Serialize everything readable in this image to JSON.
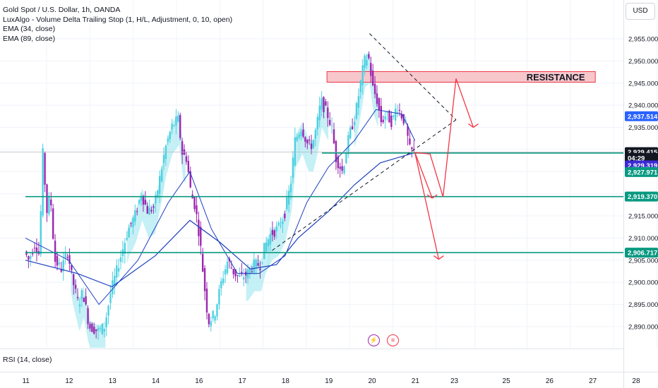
{
  "legend": {
    "symbol": "Gold Spot / U.S. Dollar, 1h, OANDA",
    "indicator": "LuxAlgo - Volume Delta Trailing Stop (1, H/L, Adjustment, 0, 10, open)",
    "ema34": "EMA (34, close)",
    "ema89": "EMA (89, close)"
  },
  "currency_button": "USD",
  "rsi_label": "RSI (14, close)",
  "colors": {
    "bull": "#4dd0e1",
    "bear": "#9c27b0",
    "ema": "#1e3fbf",
    "level": "#089981",
    "resistance_fill": "#f7c7cc",
    "resistance_border": "#f23645",
    "arrow": "#f23645",
    "trail_fill": "#b2ebf2",
    "grid": "#f0f3fa"
  },
  "chart_data": {
    "type": "candlestick",
    "symbol": "XAUUSD",
    "timeframe": "1h",
    "y_axis": {
      "range": [
        2887,
        2957
      ],
      "ticks": [
        2890,
        2895,
        2900,
        2905,
        2910,
        2915,
        2920,
        2925,
        2930,
        2935,
        2940,
        2945,
        2950,
        2955
      ],
      "tick_labels": [
        "2,890.000",
        "2,895.000",
        "2,900.000",
        "2,905.000",
        "2,910.000",
        "2,915.000",
        "",
        "",
        "",
        "2,935.000",
        "2,940.000",
        "2,945.000",
        "2,950.000",
        "2,955.000"
      ]
    },
    "x_axis": {
      "labels": [
        "11",
        "12",
        "13",
        "14",
        "16",
        "17",
        "18",
        "19",
        "20",
        "21",
        "23",
        "25",
        "26",
        "27",
        "28"
      ],
      "label_slots": [
        0.5,
        1.5,
        2.5,
        3.5,
        4.5,
        5.5,
        6.5,
        7.5,
        8.5,
        9.5,
        10.4,
        11.6,
        12.6,
        13.6,
        14.6
      ],
      "candle_day_range": [
        0,
        10.05
      ]
    },
    "price_path": [
      [
        0,
        2907
      ],
      [
        0.1,
        2905
      ],
      [
        0.25,
        2909
      ],
      [
        0.35,
        2906
      ],
      [
        0.42,
        2930
      ],
      [
        0.52,
        2916
      ],
      [
        0.6,
        2920
      ],
      [
        0.7,
        2905
      ],
      [
        0.85,
        2903
      ],
      [
        1.0,
        2907
      ],
      [
        1.1,
        2901
      ],
      [
        1.25,
        2895
      ],
      [
        1.35,
        2898
      ],
      [
        1.5,
        2890
      ],
      [
        1.7,
        2889
      ],
      [
        1.85,
        2890
      ],
      [
        2.0,
        2898
      ],
      [
        2.2,
        2905
      ],
      [
        2.4,
        2912
      ],
      [
        2.55,
        2915
      ],
      [
        2.7,
        2920
      ],
      [
        2.85,
        2916
      ],
      [
        3.0,
        2917
      ],
      [
        3.1,
        2922
      ],
      [
        3.25,
        2930
      ],
      [
        3.4,
        2935
      ],
      [
        3.55,
        2937
      ],
      [
        3.65,
        2929
      ],
      [
        3.75,
        2928
      ],
      [
        3.85,
        2920
      ],
      [
        3.95,
        2917
      ],
      [
        4.05,
        2910
      ],
      [
        4.15,
        2900
      ],
      [
        4.25,
        2891
      ],
      [
        4.4,
        2893
      ],
      [
        4.55,
        2900
      ],
      [
        4.7,
        2905
      ],
      [
        4.85,
        2902
      ],
      [
        5.0,
        2901
      ],
      [
        5.15,
        2902
      ],
      [
        5.3,
        2904
      ],
      [
        5.45,
        2904
      ],
      [
        5.55,
        2908
      ],
      [
        5.7,
        2911
      ],
      [
        5.85,
        2912
      ],
      [
        6.0,
        2915
      ],
      [
        6.15,
        2922
      ],
      [
        6.25,
        2932
      ],
      [
        6.4,
        2935
      ],
      [
        6.55,
        2931
      ],
      [
        6.65,
        2931
      ],
      [
        6.75,
        2935
      ],
      [
        6.85,
        2941
      ],
      [
        7.0,
        2938
      ],
      [
        7.1,
        2935
      ],
      [
        7.2,
        2928
      ],
      [
        7.35,
        2925
      ],
      [
        7.5,
        2933
      ],
      [
        7.65,
        2938
      ],
      [
        7.75,
        2944
      ],
      [
        7.85,
        2950
      ],
      [
        7.95,
        2951
      ],
      [
        8.05,
        2944
      ],
      [
        8.15,
        2941
      ],
      [
        8.25,
        2936
      ],
      [
        8.35,
        2938
      ],
      [
        8.5,
        2936
      ],
      [
        8.6,
        2940
      ],
      [
        8.7,
        2938
      ],
      [
        8.8,
        2936
      ],
      [
        8.9,
        2930
      ],
      [
        9.0,
        2929.4
      ]
    ],
    "ema_34": [
      [
        0,
        2910
      ],
      [
        1.0,
        2905
      ],
      [
        1.7,
        2895
      ],
      [
        2.6,
        2905
      ],
      [
        3.3,
        2918
      ],
      [
        3.8,
        2925
      ],
      [
        4.3,
        2912
      ],
      [
        4.9,
        2902
      ],
      [
        5.4,
        2902
      ],
      [
        6.0,
        2906
      ],
      [
        6.5,
        2918
      ],
      [
        7.0,
        2926
      ],
      [
        7.6,
        2932
      ],
      [
        8.1,
        2939
      ],
      [
        8.7,
        2938
      ],
      [
        9.0,
        2932
      ]
    ],
    "ema_89": [
      [
        0,
        2905
      ],
      [
        1.2,
        2902
      ],
      [
        2.0,
        2899
      ],
      [
        3.0,
        2906
      ],
      [
        3.8,
        2914
      ],
      [
        4.5,
        2909
      ],
      [
        5.2,
        2903
      ],
      [
        5.8,
        2904
      ],
      [
        6.3,
        2910
      ],
      [
        7.0,
        2916
      ],
      [
        7.6,
        2922
      ],
      [
        8.2,
        2927
      ],
      [
        9.0,
        2929.3
      ]
    ],
    "levels": [
      {
        "price": 2929.2,
        "from_slot": 6.85
      },
      {
        "price": 2919.37,
        "from_slot": 0
      },
      {
        "price": 2906.717,
        "from_slot": 0
      }
    ],
    "resistance_zone": {
      "label": "RESISTANCE",
      "price_low": 2945.2,
      "price_high": 2947.6,
      "from_slot": 7.0,
      "to_slot": 13.2
    },
    "triangle": {
      "apex": [
        7.95,
        2956.2
      ],
      "upper_end": [
        9.95,
        2936.7
      ],
      "lower_start": [
        5.7,
        2907.2
      ]
    },
    "forecast_paths": [
      [
        [
          9.0,
          2929.3
        ],
        [
          9.4,
          2919.0
        ],
        [
          9.55,
          2922.6
        ]
      ],
      [
        [
          9.0,
          2929.3
        ],
        [
          9.55,
          2905.2
        ],
        [
          9.7,
          2906.6
        ]
      ],
      [
        [
          9.0,
          2929.3
        ],
        [
          9.35,
          2929.0
        ],
        [
          9.65,
          2919.3
        ],
        [
          9.95,
          2946.0
        ],
        [
          10.35,
          2935.0
        ],
        [
          10.45,
          2936.3
        ]
      ]
    ],
    "price_labels": [
      {
        "text": "2,937.514",
        "price": 2937.514,
        "color": "#2962ff"
      },
      {
        "text": "2,929.415",
        "price": 2929.415,
        "color": "#131722"
      },
      {
        "text": "04:29",
        "price": 2928.1,
        "color": "#131722"
      },
      {
        "text": "2,929.319",
        "price": 2926.4,
        "color": "#3b2ad6"
      },
      {
        "text": "2,927.971",
        "price": 2924.9,
        "color": "#089981"
      },
      {
        "text": "2,919.370",
        "price": 2919.37,
        "color": "#089981"
      },
      {
        "text": "2,906.717",
        "price": 2906.717,
        "color": "#089981"
      }
    ]
  }
}
